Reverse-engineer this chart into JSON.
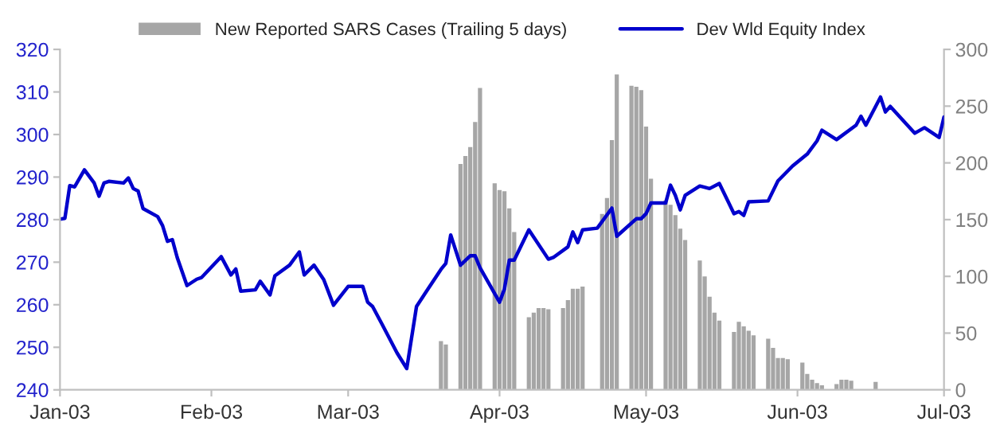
{
  "chart_data": {
    "type": "line",
    "xlim": [
      "2003-01-01",
      "2003-07-01"
    ],
    "xticks": [
      {
        "value": "2003-01-01",
        "label": "Jan-03"
      },
      {
        "value": "2003-02-01",
        "label": "Feb-03"
      },
      {
        "value": "2003-03-01",
        "label": "Mar-03"
      },
      {
        "value": "2003-04-01",
        "label": "Apr-03"
      },
      {
        "value": "2003-05-01",
        "label": "May-03"
      },
      {
        "value": "2003-06-01",
        "label": "Jun-03"
      },
      {
        "value": "2003-07-01",
        "label": "Jul-03"
      }
    ],
    "ylim": [
      240,
      320
    ],
    "yticks": [
      240,
      250,
      260,
      270,
      280,
      290,
      300,
      310,
      320
    ],
    "y2lim": [
      0,
      300
    ],
    "y2ticks": [
      0,
      50,
      100,
      150,
      200,
      250,
      300
    ],
    "legend": "top",
    "grid": false,
    "series": [
      {
        "name": "New Reported SARS Cases (Trailing 5 days)",
        "type": "bar",
        "axis": "y2",
        "color": "#a6a6a6",
        "x": [
          "2003-03-20",
          "2003-03-21",
          "2003-03-24",
          "2003-03-25",
          "2003-03-26",
          "2003-03-27",
          "2003-03-28",
          "2003-03-31",
          "2003-04-01",
          "2003-04-02",
          "2003-04-03",
          "2003-04-04",
          "2003-04-07",
          "2003-04-08",
          "2003-04-09",
          "2003-04-10",
          "2003-04-11",
          "2003-04-14",
          "2003-04-15",
          "2003-04-16",
          "2003-04-17",
          "2003-04-18",
          "2003-04-22",
          "2003-04-23",
          "2003-04-24",
          "2003-04-25",
          "2003-04-28",
          "2003-04-29",
          "2003-04-30",
          "2003-05-01",
          "2003-05-02",
          "2003-05-05",
          "2003-05-06",
          "2003-05-07",
          "2003-05-08",
          "2003-05-09",
          "2003-05-12",
          "2003-05-13",
          "2003-05-14",
          "2003-05-15",
          "2003-05-16",
          "2003-05-19",
          "2003-05-20",
          "2003-05-21",
          "2003-05-22",
          "2003-05-23",
          "2003-05-26",
          "2003-05-27",
          "2003-05-28",
          "2003-05-29",
          "2003-05-30",
          "2003-06-02",
          "2003-06-03",
          "2003-06-04",
          "2003-06-05",
          "2003-06-06",
          "2003-06-09",
          "2003-06-10",
          "2003-06-11",
          "2003-06-12",
          "2003-06-17"
        ],
        "values": [
          43,
          40,
          199,
          206,
          214,
          236,
          266,
          182,
          176,
          175,
          160,
          139,
          64,
          68,
          72,
          72,
          71,
          72,
          79,
          89,
          89,
          91,
          155,
          169,
          220,
          278,
          268,
          267,
          264,
          232,
          186,
          167,
          163,
          154,
          142,
          132,
          114,
          100,
          82,
          68,
          61,
          51,
          60,
          56,
          52,
          48,
          45,
          37,
          28,
          28,
          27,
          24,
          14,
          9,
          6,
          4,
          5,
          9,
          9,
          8,
          7
        ]
      },
      {
        "name": "Dev Wld Equity Index",
        "color": "#0000cc",
        "x": [
          "2003-01-01",
          "2003-01-02",
          "2003-01-03",
          "2003-01-04",
          "2003-01-06",
          "2003-01-08",
          "2003-01-09",
          "2003-01-10",
          "2003-01-11",
          "2003-01-14",
          "2003-01-15",
          "2003-01-16",
          "2003-01-17",
          "2003-01-18",
          "2003-01-21",
          "2003-01-22",
          "2003-01-23",
          "2003-01-24",
          "2003-01-25",
          "2003-01-27",
          "2003-01-29",
          "2003-01-30",
          "2003-02-03",
          "2003-02-05",
          "2003-02-06",
          "2003-02-07",
          "2003-02-10",
          "2003-02-11",
          "2003-02-13",
          "2003-02-14",
          "2003-02-17",
          "2003-02-19",
          "2003-02-20",
          "2003-02-22",
          "2003-02-24",
          "2003-02-26",
          "2003-03-01",
          "2003-03-04",
          "2003-03-05",
          "2003-03-06",
          "2003-03-08",
          "2003-03-11",
          "2003-03-13",
          "2003-03-15",
          "2003-03-17",
          "2003-03-20",
          "2003-03-21",
          "2003-03-22",
          "2003-03-24",
          "2003-03-26",
          "2003-03-27",
          "2003-03-28",
          "2003-04-01",
          "2003-04-02",
          "2003-04-03",
          "2003-04-04",
          "2003-04-07",
          "2003-04-11",
          "2003-04-12",
          "2003-04-15",
          "2003-04-16",
          "2003-04-17",
          "2003-04-18",
          "2003-04-21",
          "2003-04-24",
          "2003-04-25",
          "2003-04-29",
          "2003-04-30",
          "2003-05-01",
          "2003-05-02",
          "2003-05-05",
          "2003-05-06",
          "2003-05-07",
          "2003-05-08",
          "2003-05-09",
          "2003-05-12",
          "2003-05-14",
          "2003-05-16",
          "2003-05-19",
          "2003-05-20",
          "2003-05-21",
          "2003-05-22",
          "2003-05-26",
          "2003-05-28",
          "2003-05-31",
          "2003-06-03",
          "2003-06-05",
          "2003-06-06",
          "2003-06-09",
          "2003-06-13",
          "2003-06-14",
          "2003-06-15",
          "2003-06-18",
          "2003-06-19",
          "2003-06-20",
          "2003-06-25",
          "2003-06-27",
          "2003-06-30",
          "2003-07-01"
        ],
        "values": [
          280.1,
          280.3,
          288,
          287.7,
          291.7,
          288.6,
          285.5,
          288.6,
          289,
          288.6,
          289.8,
          287.3,
          286.7,
          282.6,
          280.7,
          278.6,
          274.9,
          275.3,
          271.1,
          264.5,
          266,
          266.4,
          271.3,
          267,
          268.4,
          263.2,
          263.5,
          265.5,
          262.3,
          266.8,
          269.3,
          272.4,
          267,
          269.3,
          265.9,
          259.9,
          264.3,
          264.3,
          260.6,
          259.6,
          255.3,
          248.7,
          245,
          259.6,
          263.1,
          268.3,
          269.7,
          276.4,
          269.3,
          271.5,
          271.5,
          268.7,
          260.6,
          263.7,
          270.5,
          270.5,
          277.6,
          270.7,
          271.1,
          273.6,
          277.1,
          274.6,
          277.6,
          278,
          282.7,
          276.1,
          280.2,
          280.2,
          281.4,
          283.9,
          283.9,
          288.1,
          285.7,
          282.3,
          285.7,
          287.9,
          287.3,
          288.5,
          281.4,
          281.9,
          281,
          284.2,
          284.4,
          289.1,
          292.6,
          295.4,
          298.5,
          301,
          298.8,
          302.2,
          304.3,
          302.2,
          308.8,
          305.3,
          306.6,
          300.3,
          301.6,
          299.3,
          304.1
        ]
      }
    ]
  }
}
